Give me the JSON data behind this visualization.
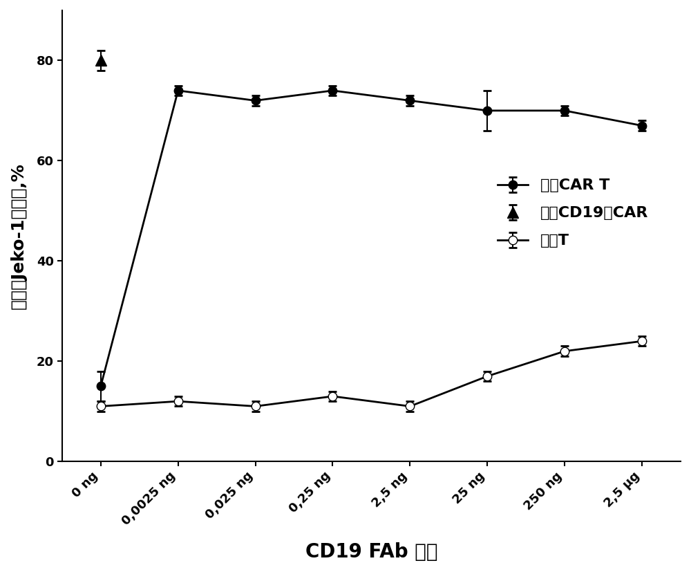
{
  "x_labels": [
    "0 ng",
    "0,0025 ng",
    "0,025 ng",
    "0,25 ng",
    "2,5 ng",
    "25 ng",
    "250 ng",
    "2,5 μg"
  ],
  "x_positions": [
    0,
    1,
    2,
    3,
    4,
    5,
    6,
    7
  ],
  "aptamer_cart_y": [
    15,
    74,
    72,
    74,
    72,
    70,
    70,
    67
  ],
  "aptamer_cart_yerr": [
    3,
    1,
    1,
    1,
    1,
    4,
    1,
    1
  ],
  "cd19_car_y": [
    80
  ],
  "cd19_car_x": [
    0
  ],
  "cd19_car_yerr": [
    2
  ],
  "mock_t_y": [
    11,
    12,
    11,
    13,
    11,
    17,
    22,
    24
  ],
  "mock_t_yerr": [
    1,
    1,
    1,
    1,
    1,
    1,
    1,
    1
  ],
  "ylabel": "杀伤的Jeko-1靶细胞,%",
  "xlabel": "CD19 FAb 适体",
  "ylim": [
    0,
    90
  ],
  "yticks": [
    0,
    20,
    40,
    60,
    80
  ],
  "legend_labels": [
    "适体CAR T",
    "针对CD19的CAR",
    "模拟T"
  ],
  "background_color": "#ffffff",
  "line_color": "#000000",
  "label_fontsize": 18,
  "tick_fontsize": 13,
  "legend_fontsize": 16
}
